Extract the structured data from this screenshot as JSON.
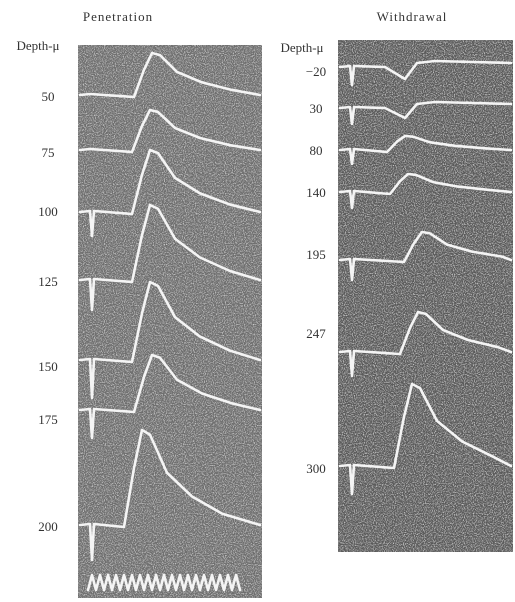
{
  "panels": [
    {
      "title": "Penetration",
      "axis_label": "Depth-μ",
      "depths": [
        "50",
        "75",
        "100",
        "125",
        "150",
        "175",
        "200"
      ]
    },
    {
      "title": "Withdrawal",
      "axis_label": "Depth-μ",
      "depths": [
        "−20",
        "30",
        "80",
        "140",
        "195",
        "247",
        "300"
      ]
    }
  ]
}
